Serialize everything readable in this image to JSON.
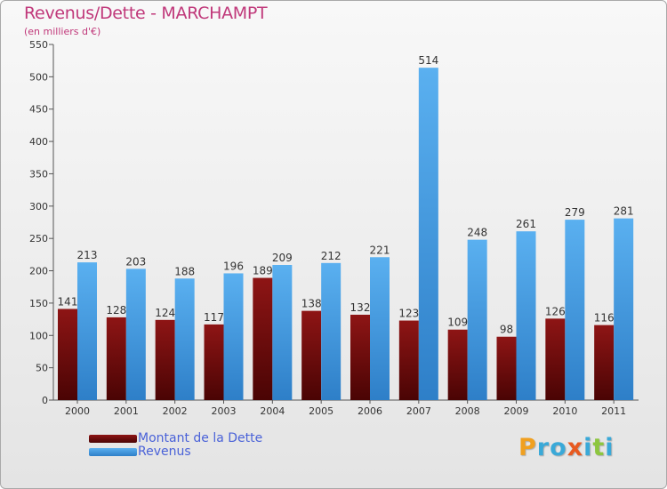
{
  "chart_data": {
    "type": "bar",
    "title": "Revenus/Dette - MARCHAMPT",
    "subtitle": "(en milliers d'€)",
    "categories": [
      "2000",
      "2001",
      "2002",
      "2003",
      "2004",
      "2005",
      "2006",
      "2007",
      "2008",
      "2009",
      "2010",
      "2011"
    ],
    "series": [
      {
        "name": "Montant de la Dette",
        "values": [
          141,
          128,
          124,
          117,
          189,
          138,
          132,
          123,
          109,
          98,
          126,
          116
        ],
        "color": "#7a0a0a"
      },
      {
        "name": "Revenus",
        "values": [
          213,
          203,
          188,
          196,
          209,
          212,
          221,
          514,
          248,
          261,
          279,
          281
        ],
        "color": "#4aa3e8"
      }
    ],
    "ylim": [
      0,
      550
    ],
    "yticks": [
      0,
      50,
      100,
      150,
      200,
      250,
      300,
      350,
      400,
      450,
      500,
      550
    ],
    "grid": false,
    "legend_position": "bottom-left"
  },
  "logo": {
    "text": [
      "P",
      "r",
      "o",
      "x",
      "i",
      "t",
      "i"
    ]
  }
}
